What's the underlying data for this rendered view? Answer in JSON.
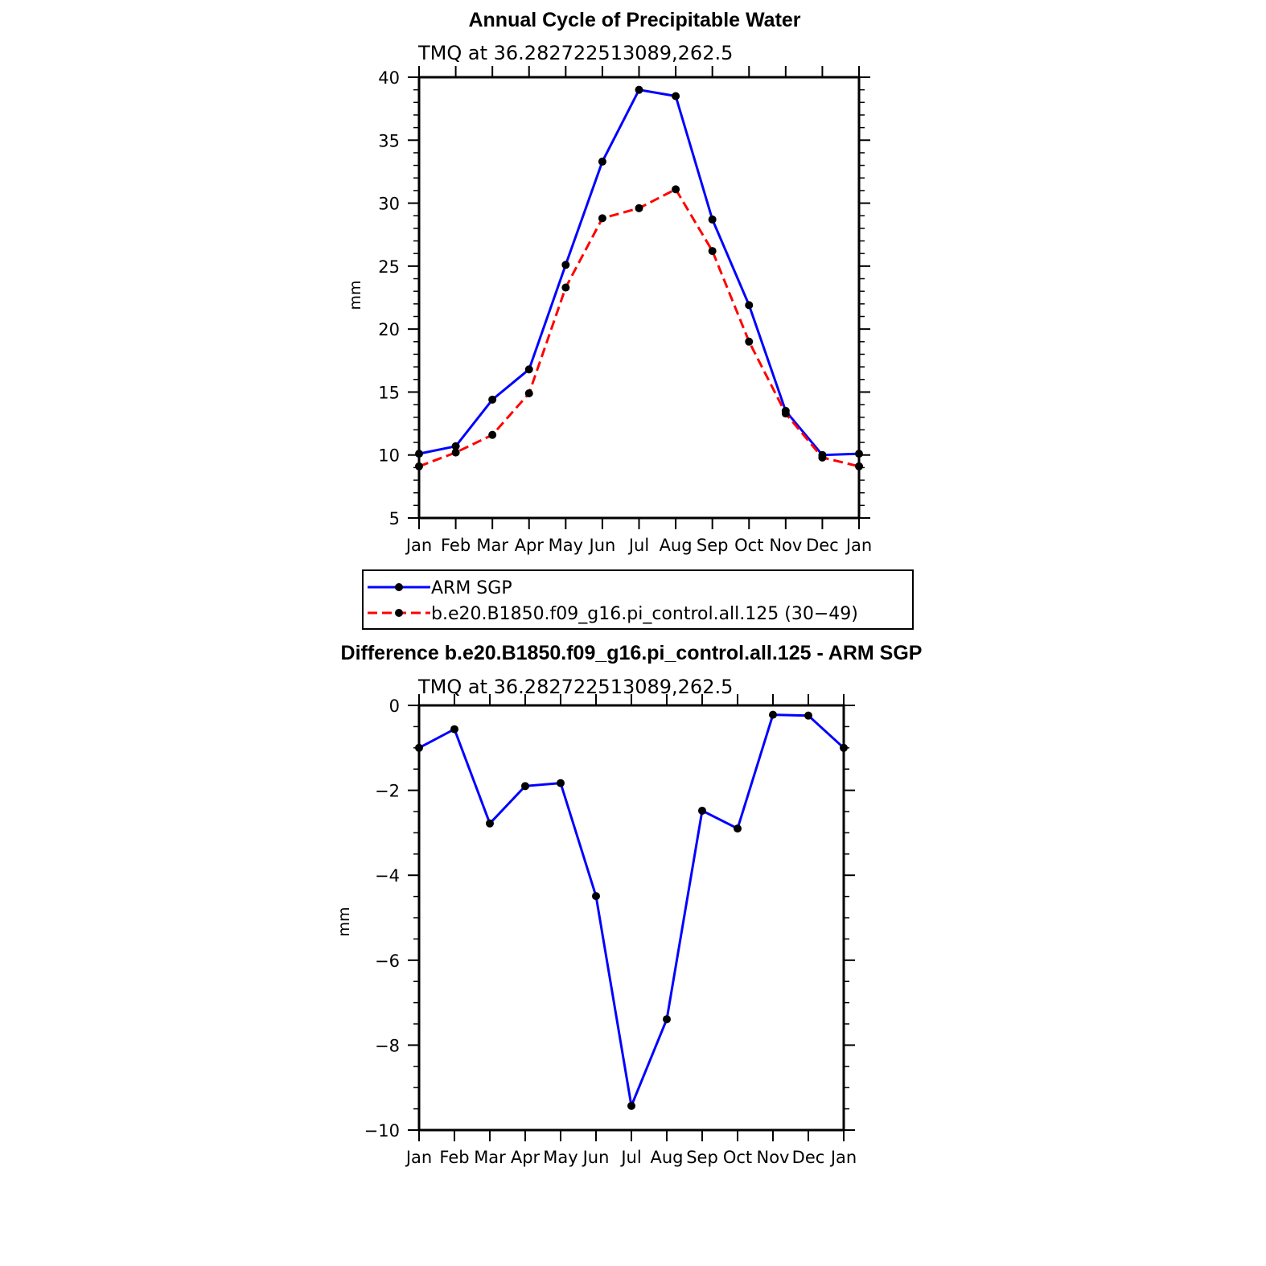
{
  "chart_data": [
    {
      "type": "line",
      "title": "Annual Cycle of Precipitable Water",
      "subtitle": "TMQ at 36.282722513089,262.5",
      "xlabel": "",
      "ylabel": "mm",
      "categories": [
        "Jan",
        "Feb",
        "Mar",
        "Apr",
        "May",
        "Jun",
        "Jul",
        "Aug",
        "Sep",
        "Oct",
        "Nov",
        "Dec",
        "Jan"
      ],
      "ylim": [
        5,
        40
      ],
      "yticks": [
        5,
        10,
        15,
        20,
        25,
        30,
        35,
        40
      ],
      "ytick_labels": [
        "5",
        "10",
        "15",
        "20",
        "25",
        "30",
        "35",
        "40"
      ],
      "grid": false,
      "legend_position": "bottom",
      "series": [
        {
          "name": "ARM SGP",
          "color": "#0000ff",
          "dash": "solid",
          "marker": "circle",
          "values": [
            10.1,
            10.7,
            14.4,
            16.8,
            25.1,
            33.3,
            39.0,
            38.5,
            28.7,
            21.9,
            13.5,
            10.0,
            10.1
          ]
        },
        {
          "name": "b.e20.B1850.f09_g16.pi_control.all.125 (30−49)",
          "color": "#ff0000",
          "dash": "dashed",
          "marker": "circle",
          "values": [
            9.1,
            10.2,
            11.6,
            14.9,
            23.3,
            28.8,
            29.6,
            31.1,
            26.2,
            19.0,
            13.3,
            9.8,
            9.1
          ]
        }
      ]
    },
    {
      "type": "line",
      "title": "Difference b.e20.B1850.f09_g16.pi_control.all.125 - ARM SGP",
      "subtitle": "TMQ at 36.282722513089,262.5",
      "xlabel": "",
      "ylabel": "mm",
      "categories": [
        "Jan",
        "Feb",
        "Mar",
        "Apr",
        "May",
        "Jun",
        "Jul",
        "Aug",
        "Sep",
        "Oct",
        "Nov",
        "Dec",
        "Jan"
      ],
      "ylim": [
        -10,
        0
      ],
      "yticks": [
        -10,
        -8,
        -6,
        -4,
        -2,
        0
      ],
      "ytick_labels": [
        "−10",
        "−8",
        "−6",
        "−4",
        "−2",
        "0"
      ],
      "grid": false,
      "series": [
        {
          "color": "#0000ff",
          "dash": "solid",
          "marker": "circle",
          "values": [
            -1.0,
            -0.56,
            -2.78,
            -1.9,
            -1.83,
            -4.49,
            -9.43,
            -7.39,
            -2.48,
            -2.9,
            -0.22,
            -0.24,
            -1.0
          ]
        }
      ]
    }
  ]
}
